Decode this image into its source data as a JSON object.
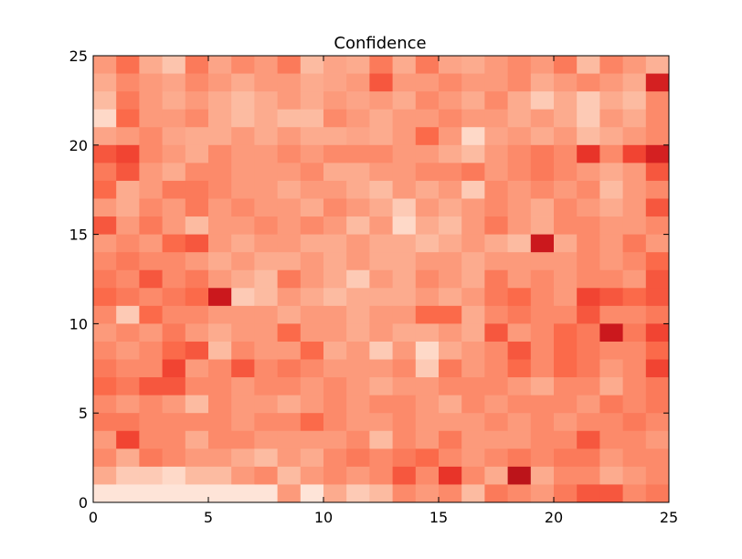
{
  "chart_data": {
    "type": "heatmap",
    "title": "Confidence",
    "xlabel": "",
    "ylabel": "",
    "xlim": [
      0,
      25
    ],
    "ylim": [
      0,
      25
    ],
    "xticks": [
      "0",
      "5",
      "10",
      "15",
      "20",
      "25"
    ],
    "yticks": [
      "0",
      "5",
      "10",
      "15",
      "20",
      "25"
    ],
    "colormap": "Reds",
    "value_range": [
      0,
      1
    ],
    "grid": false,
    "matrix_row_order": "top-to-bottom (y=24 first)",
    "values": [
      [
        0.35,
        0.48,
        0.3,
        0.22,
        0.45,
        0.32,
        0.4,
        0.35,
        0.45,
        0.25,
        0.32,
        0.3,
        0.45,
        0.3,
        0.45,
        0.32,
        0.3,
        0.35,
        0.4,
        0.35,
        0.45,
        0.25,
        0.42,
        0.35,
        0.28
      ],
      [
        0.3,
        0.4,
        0.35,
        0.32,
        0.4,
        0.35,
        0.3,
        0.35,
        0.35,
        0.3,
        0.32,
        0.35,
        0.55,
        0.35,
        0.35,
        0.4,
        0.35,
        0.35,
        0.4,
        0.3,
        0.35,
        0.4,
        0.35,
        0.3,
        0.72
      ],
      [
        0.25,
        0.45,
        0.35,
        0.3,
        0.35,
        0.3,
        0.25,
        0.3,
        0.35,
        0.3,
        0.35,
        0.32,
        0.35,
        0.3,
        0.4,
        0.35,
        0.3,
        0.4,
        0.3,
        0.2,
        0.3,
        0.2,
        0.3,
        0.25,
        0.4
      ],
      [
        0.15,
        0.5,
        0.35,
        0.35,
        0.4,
        0.3,
        0.25,
        0.3,
        0.25,
        0.25,
        0.4,
        0.35,
        0.3,
        0.35,
        0.35,
        0.4,
        0.35,
        0.35,
        0.3,
        0.35,
        0.3,
        0.2,
        0.35,
        0.3,
        0.4
      ],
      [
        0.32,
        0.35,
        0.4,
        0.32,
        0.3,
        0.3,
        0.35,
        0.3,
        0.35,
        0.3,
        0.3,
        0.32,
        0.3,
        0.35,
        0.5,
        0.35,
        0.15,
        0.32,
        0.35,
        0.3,
        0.35,
        0.25,
        0.3,
        0.35,
        0.4
      ],
      [
        0.55,
        0.6,
        0.4,
        0.35,
        0.3,
        0.4,
        0.35,
        0.35,
        0.4,
        0.35,
        0.4,
        0.4,
        0.4,
        0.35,
        0.35,
        0.3,
        0.25,
        0.35,
        0.4,
        0.45,
        0.4,
        0.65,
        0.4,
        0.6,
        0.72
      ],
      [
        0.45,
        0.55,
        0.35,
        0.3,
        0.4,
        0.4,
        0.35,
        0.35,
        0.35,
        0.4,
        0.3,
        0.3,
        0.35,
        0.35,
        0.4,
        0.4,
        0.45,
        0.35,
        0.4,
        0.45,
        0.4,
        0.35,
        0.3,
        0.35,
        0.55
      ],
      [
        0.5,
        0.3,
        0.35,
        0.45,
        0.45,
        0.4,
        0.35,
        0.35,
        0.3,
        0.35,
        0.35,
        0.3,
        0.25,
        0.35,
        0.3,
        0.35,
        0.2,
        0.4,
        0.35,
        0.4,
        0.35,
        0.4,
        0.25,
        0.35,
        0.4
      ],
      [
        0.35,
        0.3,
        0.4,
        0.35,
        0.45,
        0.35,
        0.4,
        0.35,
        0.35,
        0.3,
        0.4,
        0.35,
        0.3,
        0.2,
        0.35,
        0.3,
        0.35,
        0.4,
        0.35,
        0.3,
        0.4,
        0.35,
        0.3,
        0.35,
        0.55
      ],
      [
        0.55,
        0.35,
        0.45,
        0.35,
        0.25,
        0.35,
        0.35,
        0.4,
        0.35,
        0.4,
        0.35,
        0.25,
        0.35,
        0.15,
        0.3,
        0.25,
        0.35,
        0.45,
        0.35,
        0.3,
        0.4,
        0.4,
        0.35,
        0.35,
        0.4
      ],
      [
        0.35,
        0.4,
        0.35,
        0.5,
        0.55,
        0.35,
        0.3,
        0.35,
        0.35,
        0.3,
        0.3,
        0.35,
        0.3,
        0.3,
        0.25,
        0.3,
        0.35,
        0.3,
        0.25,
        0.75,
        0.3,
        0.4,
        0.35,
        0.45,
        0.35
      ],
      [
        0.4,
        0.45,
        0.4,
        0.4,
        0.35,
        0.3,
        0.35,
        0.3,
        0.3,
        0.35,
        0.3,
        0.35,
        0.3,
        0.3,
        0.35,
        0.35,
        0.3,
        0.35,
        0.35,
        0.35,
        0.35,
        0.4,
        0.35,
        0.4,
        0.5
      ],
      [
        0.45,
        0.4,
        0.55,
        0.4,
        0.45,
        0.35,
        0.3,
        0.25,
        0.45,
        0.35,
        0.3,
        0.2,
        0.35,
        0.3,
        0.4,
        0.35,
        0.3,
        0.45,
        0.35,
        0.4,
        0.35,
        0.4,
        0.4,
        0.35,
        0.55
      ],
      [
        0.5,
        0.45,
        0.4,
        0.45,
        0.5,
        0.75,
        0.2,
        0.25,
        0.35,
        0.3,
        0.25,
        0.3,
        0.3,
        0.3,
        0.35,
        0.3,
        0.35,
        0.45,
        0.5,
        0.4,
        0.35,
        0.6,
        0.55,
        0.5,
        0.55
      ],
      [
        0.4,
        0.2,
        0.5,
        0.4,
        0.4,
        0.35,
        0.35,
        0.35,
        0.3,
        0.35,
        0.35,
        0.3,
        0.35,
        0.35,
        0.5,
        0.5,
        0.3,
        0.4,
        0.45,
        0.4,
        0.4,
        0.55,
        0.4,
        0.4,
        0.45
      ],
      [
        0.35,
        0.4,
        0.35,
        0.45,
        0.35,
        0.3,
        0.35,
        0.35,
        0.5,
        0.35,
        0.35,
        0.3,
        0.35,
        0.3,
        0.3,
        0.35,
        0.3,
        0.55,
        0.35,
        0.4,
        0.5,
        0.45,
        0.75,
        0.45,
        0.6
      ],
      [
        0.4,
        0.35,
        0.4,
        0.5,
        0.55,
        0.25,
        0.4,
        0.35,
        0.35,
        0.5,
        0.3,
        0.35,
        0.2,
        0.35,
        0.15,
        0.3,
        0.35,
        0.4,
        0.55,
        0.4,
        0.5,
        0.45,
        0.4,
        0.4,
        0.5
      ],
      [
        0.45,
        0.4,
        0.4,
        0.6,
        0.35,
        0.4,
        0.55,
        0.4,
        0.45,
        0.4,
        0.35,
        0.35,
        0.35,
        0.4,
        0.2,
        0.45,
        0.35,
        0.4,
        0.5,
        0.4,
        0.5,
        0.45,
        0.35,
        0.4,
        0.6
      ],
      [
        0.5,
        0.45,
        0.55,
        0.55,
        0.4,
        0.4,
        0.35,
        0.4,
        0.4,
        0.35,
        0.4,
        0.35,
        0.3,
        0.35,
        0.35,
        0.4,
        0.4,
        0.4,
        0.35,
        0.3,
        0.4,
        0.4,
        0.3,
        0.4,
        0.45
      ],
      [
        0.4,
        0.35,
        0.4,
        0.35,
        0.25,
        0.4,
        0.35,
        0.35,
        0.3,
        0.35,
        0.4,
        0.35,
        0.4,
        0.4,
        0.35,
        0.3,
        0.4,
        0.35,
        0.4,
        0.4,
        0.4,
        0.35,
        0.45,
        0.4,
        0.45
      ],
      [
        0.45,
        0.45,
        0.4,
        0.4,
        0.4,
        0.4,
        0.35,
        0.4,
        0.4,
        0.5,
        0.4,
        0.35,
        0.35,
        0.4,
        0.35,
        0.35,
        0.35,
        0.4,
        0.35,
        0.4,
        0.35,
        0.4,
        0.4,
        0.45,
        0.4
      ],
      [
        0.35,
        0.6,
        0.4,
        0.4,
        0.3,
        0.4,
        0.4,
        0.35,
        0.35,
        0.35,
        0.35,
        0.4,
        0.25,
        0.4,
        0.35,
        0.45,
        0.35,
        0.35,
        0.35,
        0.4,
        0.4,
        0.55,
        0.4,
        0.4,
        0.35
      ],
      [
        0.4,
        0.3,
        0.45,
        0.4,
        0.35,
        0.35,
        0.3,
        0.25,
        0.35,
        0.3,
        0.4,
        0.45,
        0.4,
        0.45,
        0.5,
        0.4,
        0.35,
        0.4,
        0.45,
        0.4,
        0.45,
        0.45,
        0.35,
        0.4,
        0.4
      ],
      [
        0.3,
        0.2,
        0.2,
        0.15,
        0.25,
        0.25,
        0.35,
        0.4,
        0.25,
        0.35,
        0.4,
        0.35,
        0.4,
        0.55,
        0.4,
        0.65,
        0.4,
        0.3,
        0.8,
        0.3,
        0.4,
        0.4,
        0.3,
        0.35,
        0.4
      ],
      [
        0.1,
        0.1,
        0.1,
        0.1,
        0.1,
        0.1,
        0.1,
        0.1,
        0.35,
        0.1,
        0.3,
        0.2,
        0.25,
        0.4,
        0.35,
        0.4,
        0.25,
        0.45,
        0.4,
        0.35,
        0.45,
        0.55,
        0.55,
        0.4,
        0.45
      ]
    ]
  },
  "colors": {
    "scale_low": "#fff5f0",
    "scale_high": "#67000d"
  }
}
